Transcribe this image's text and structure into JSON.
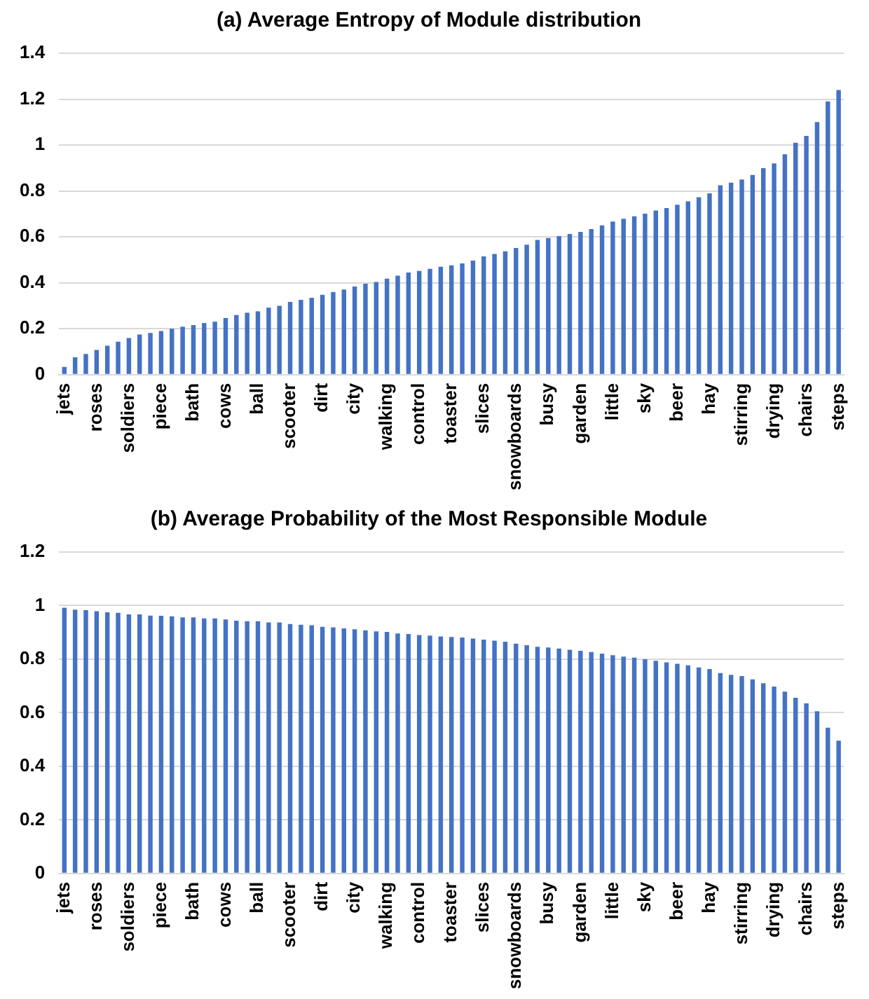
{
  "chart_data": [
    {
      "type": "bar",
      "title": "(a) Average Entropy of Module distribution",
      "color": "#4472c4",
      "grid": "y",
      "ylim": [
        0,
        1.4
      ],
      "yticks": [
        0,
        0.2,
        0.4,
        0.6,
        0.8,
        1,
        1.2,
        1.4
      ],
      "categories": [
        "jets",
        null,
        null,
        "roses",
        null,
        null,
        "soldiers",
        null,
        null,
        "piece",
        null,
        null,
        "bath",
        null,
        null,
        "cows",
        null,
        null,
        "ball",
        null,
        null,
        "scooter",
        null,
        null,
        "dirt",
        null,
        null,
        "city",
        null,
        null,
        "walking",
        null,
        null,
        "control",
        null,
        null,
        "toaster",
        null,
        null,
        "slices",
        null,
        null,
        "snowboards",
        null,
        null,
        "busy",
        null,
        null,
        "garden",
        null,
        null,
        "little",
        null,
        null,
        "sky",
        null,
        null,
        "beer",
        null,
        null,
        "hay",
        null,
        null,
        "stirring",
        null,
        null,
        "drying",
        null,
        null,
        "chairs",
        null,
        null,
        "steps"
      ],
      "values": [
        0.034,
        0.076,
        0.09,
        0.108,
        0.126,
        0.144,
        0.16,
        0.175,
        0.182,
        0.19,
        0.2,
        0.209,
        0.216,
        0.225,
        0.231,
        0.247,
        0.26,
        0.27,
        0.276,
        0.292,
        0.3,
        0.317,
        0.326,
        0.335,
        0.348,
        0.36,
        0.371,
        0.384,
        0.396,
        0.404,
        0.418,
        0.431,
        0.445,
        0.452,
        0.461,
        0.47,
        0.476,
        0.485,
        0.497,
        0.515,
        0.526,
        0.537,
        0.552,
        0.566,
        0.587,
        0.595,
        0.604,
        0.613,
        0.622,
        0.634,
        0.65,
        0.667,
        0.679,
        0.69,
        0.701,
        0.715,
        0.726,
        0.74,
        0.755,
        0.773,
        0.79,
        0.825,
        0.836,
        0.85,
        0.87,
        0.9,
        0.92,
        0.96,
        1.01,
        1.04,
        1.1,
        1.19,
        1.24
      ]
    },
    {
      "type": "bar",
      "title": "(b) Average Probability of the Most Responsible Module",
      "color": "#4472c4",
      "grid": "y",
      "ylim": [
        0,
        1.2
      ],
      "yticks": [
        0,
        0.2,
        0.4,
        0.6,
        0.8,
        1,
        1.2
      ],
      "categories": [
        "jets",
        null,
        null,
        "roses",
        null,
        null,
        "soldiers",
        null,
        null,
        "piece",
        null,
        null,
        "bath",
        null,
        null,
        "cows",
        null,
        null,
        "ball",
        null,
        null,
        "scooter",
        null,
        null,
        "dirt",
        null,
        null,
        "city",
        null,
        null,
        "walking",
        null,
        null,
        "control",
        null,
        null,
        "toaster",
        null,
        null,
        "slices",
        null,
        null,
        "snowboards",
        null,
        null,
        "busy",
        null,
        null,
        "garden",
        null,
        null,
        "little",
        null,
        null,
        "sky",
        null,
        null,
        "beer",
        null,
        null,
        "hay",
        null,
        null,
        "stirring",
        null,
        null,
        "drying",
        null,
        null,
        "chairs",
        null,
        null,
        "steps"
      ],
      "values": [
        0.992,
        0.985,
        0.983,
        0.979,
        0.975,
        0.973,
        0.967,
        0.967,
        0.963,
        0.962,
        0.96,
        0.956,
        0.956,
        0.952,
        0.952,
        0.948,
        0.944,
        0.942,
        0.942,
        0.937,
        0.937,
        0.931,
        0.929,
        0.927,
        0.921,
        0.919,
        0.915,
        0.912,
        0.908,
        0.904,
        0.902,
        0.896,
        0.894,
        0.89,
        0.888,
        0.885,
        0.883,
        0.881,
        0.877,
        0.873,
        0.869,
        0.865,
        0.858,
        0.852,
        0.846,
        0.844,
        0.84,
        0.835,
        0.831,
        0.827,
        0.821,
        0.815,
        0.81,
        0.806,
        0.8,
        0.794,
        0.788,
        0.783,
        0.777,
        0.769,
        0.763,
        0.748,
        0.742,
        0.737,
        0.725,
        0.71,
        0.698,
        0.679,
        0.656,
        0.635,
        0.606,
        0.544,
        0.496
      ]
    }
  ]
}
